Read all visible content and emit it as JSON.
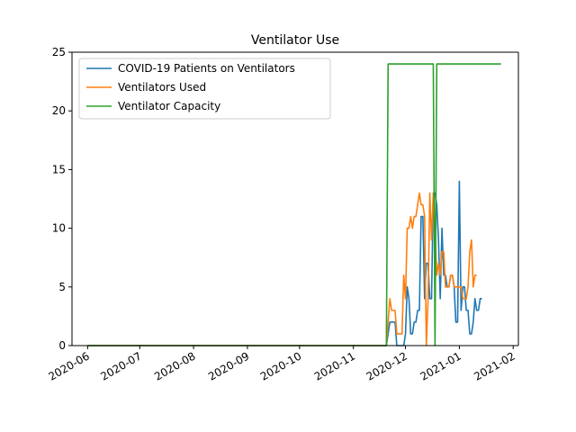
{
  "chart_data": {
    "type": "line",
    "title": "Ventilator Use",
    "xlabel": "",
    "ylabel": "",
    "xlim": [
      "2020-05-23",
      "2021-02-04"
    ],
    "ylim": [
      0,
      25
    ],
    "grid": false,
    "legend_position": "top-left",
    "x_ticks": [
      {
        "date": "2020-06-01",
        "label": "2020-06"
      },
      {
        "date": "2020-07-01",
        "label": "2020-07"
      },
      {
        "date": "2020-08-01",
        "label": "2020-08"
      },
      {
        "date": "2020-09-01",
        "label": "2020-09"
      },
      {
        "date": "2020-10-01",
        "label": "2020-10"
      },
      {
        "date": "2020-11-01",
        "label": "2020-11"
      },
      {
        "date": "2020-12-01",
        "label": "2020-12"
      },
      {
        "date": "2021-01-01",
        "label": "2021-01"
      },
      {
        "date": "2021-02-01",
        "label": "2021-02"
      }
    ],
    "y_ticks": [
      0,
      5,
      10,
      15,
      20,
      25
    ],
    "series": [
      {
        "name": "COVID-19 Patients on Ventilators",
        "color": "#1f77b4",
        "points": [
          [
            "2020-06-01",
            0
          ],
          [
            "2020-11-20",
            0
          ],
          [
            "2020-11-22",
            2
          ],
          [
            "2020-11-25",
            2
          ],
          [
            "2020-11-26",
            0
          ],
          [
            "2020-11-30",
            0
          ],
          [
            "2020-12-01",
            1
          ],
          [
            "2020-12-02",
            5
          ],
          [
            "2020-12-03",
            4
          ],
          [
            "2020-12-04",
            1
          ],
          [
            "2020-12-05",
            1
          ],
          [
            "2020-12-06",
            2
          ],
          [
            "2020-12-07",
            2
          ],
          [
            "2020-12-08",
            3
          ],
          [
            "2020-12-09",
            3
          ],
          [
            "2020-12-10",
            11
          ],
          [
            "2020-12-11",
            11
          ],
          [
            "2020-12-12",
            4
          ],
          [
            "2020-12-13",
            7
          ],
          [
            "2020-12-14",
            7
          ],
          [
            "2020-12-15",
            4
          ],
          [
            "2020-12-16",
            4
          ],
          [
            "2020-12-17",
            13
          ],
          [
            "2020-12-18",
            13
          ],
          [
            "2020-12-19",
            12
          ],
          [
            "2020-12-20",
            9
          ],
          [
            "2020-12-21",
            4
          ],
          [
            "2020-12-22",
            10
          ],
          [
            "2020-12-23",
            6
          ],
          [
            "2020-12-24",
            6
          ],
          [
            "2020-12-25",
            5
          ],
          [
            "2020-12-26",
            5
          ],
          [
            "2020-12-27",
            6
          ],
          [
            "2020-12-28",
            6
          ],
          [
            "2020-12-29",
            5
          ],
          [
            "2020-12-30",
            2
          ],
          [
            "2020-12-31",
            2
          ],
          [
            "2021-01-01",
            14
          ],
          [
            "2021-01-02",
            3
          ],
          [
            "2021-01-03",
            5
          ],
          [
            "2021-01-04",
            5
          ],
          [
            "2021-01-05",
            3
          ],
          [
            "2021-01-06",
            3
          ],
          [
            "2021-01-07",
            1
          ],
          [
            "2021-01-08",
            1
          ],
          [
            "2021-01-09",
            2
          ],
          [
            "2021-01-10",
            4
          ],
          [
            "2021-01-11",
            3
          ],
          [
            "2021-01-12",
            3
          ],
          [
            "2021-01-13",
            4
          ],
          [
            "2021-01-14",
            4
          ]
        ]
      },
      {
        "name": "Ventilators Used",
        "color": "#ff7f0e",
        "points": [
          [
            "2020-06-01",
            0
          ],
          [
            "2020-11-20",
            0
          ],
          [
            "2020-11-21",
            2
          ],
          [
            "2020-11-22",
            4
          ],
          [
            "2020-11-23",
            3
          ],
          [
            "2020-11-25",
            3
          ],
          [
            "2020-11-26",
            1
          ],
          [
            "2020-11-29",
            1
          ],
          [
            "2020-11-30",
            6
          ],
          [
            "2020-12-01",
            4
          ],
          [
            "2020-12-02",
            10
          ],
          [
            "2020-12-03",
            10
          ],
          [
            "2020-12-04",
            11
          ],
          [
            "2020-12-05",
            10
          ],
          [
            "2020-12-06",
            11
          ],
          [
            "2020-12-07",
            11
          ],
          [
            "2020-12-08",
            12
          ],
          [
            "2020-12-09",
            13
          ],
          [
            "2020-12-10",
            12
          ],
          [
            "2020-12-11",
            12
          ],
          [
            "2020-12-12",
            11
          ],
          [
            "2020-12-13",
            0
          ],
          [
            "2020-12-14",
            4
          ],
          [
            "2020-12-15",
            13
          ],
          [
            "2020-12-16",
            9
          ],
          [
            "2020-12-17",
            13
          ],
          [
            "2020-12-18",
            10
          ],
          [
            "2020-12-19",
            6
          ],
          [
            "2020-12-20",
            7
          ],
          [
            "2020-12-21",
            6
          ],
          [
            "2020-12-22",
            8
          ],
          [
            "2020-12-23",
            8
          ],
          [
            "2020-12-24",
            5
          ],
          [
            "2020-12-25",
            5
          ],
          [
            "2020-12-26",
            5
          ],
          [
            "2020-12-27",
            6
          ],
          [
            "2020-12-28",
            6
          ],
          [
            "2020-12-29",
            5
          ],
          [
            "2020-12-30",
            5
          ],
          [
            "2020-12-31",
            5
          ],
          [
            "2021-01-01",
            5
          ],
          [
            "2021-01-02",
            5
          ],
          [
            "2021-01-03",
            4
          ],
          [
            "2021-01-04",
            4
          ],
          [
            "2021-01-05",
            4
          ],
          [
            "2021-01-06",
            5
          ],
          [
            "2021-01-07",
            8
          ],
          [
            "2021-01-08",
            9
          ],
          [
            "2021-01-09",
            5
          ],
          [
            "2021-01-10",
            6
          ],
          [
            "2021-01-11",
            6
          ]
        ]
      },
      {
        "name": "Ventilator Capacity",
        "color": "#2ca02c",
        "points": [
          [
            "2020-06-01",
            0
          ],
          [
            "2020-11-20",
            0
          ],
          [
            "2020-11-21",
            24
          ],
          [
            "2020-12-17",
            24
          ],
          [
            "2020-12-18",
            0
          ],
          [
            "2020-12-19",
            24
          ],
          [
            "2021-01-25",
            24
          ]
        ]
      }
    ]
  }
}
